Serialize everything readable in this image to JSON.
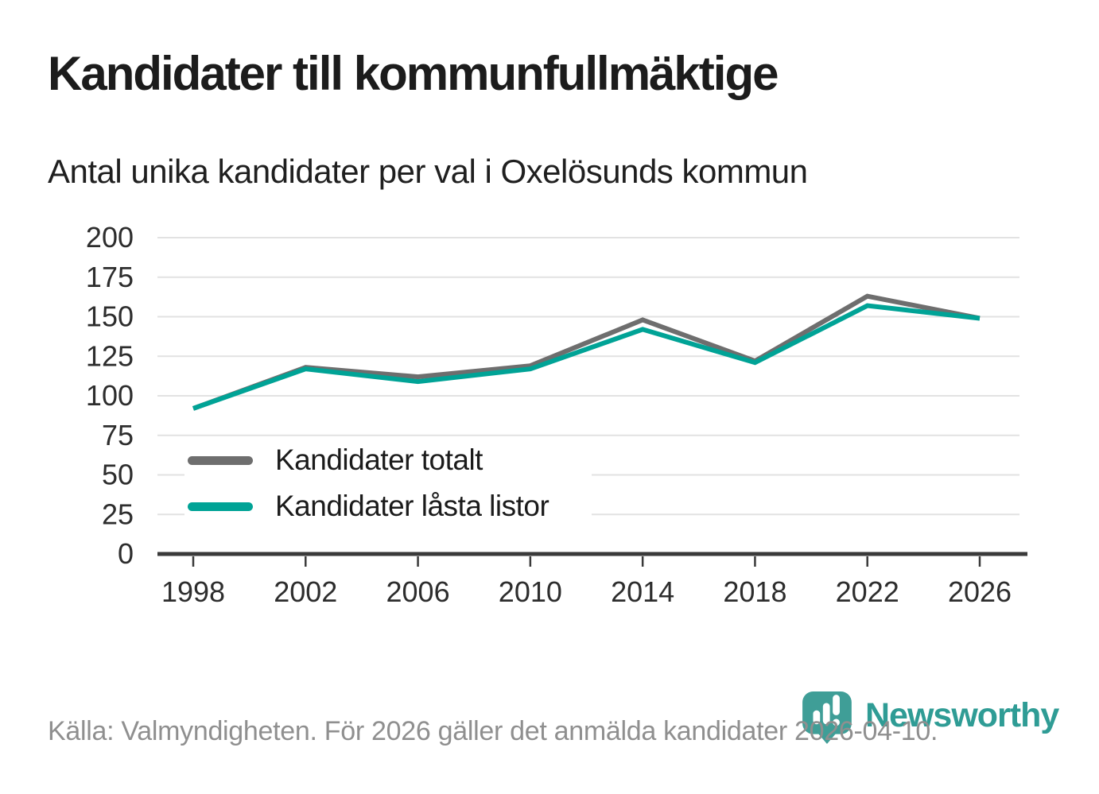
{
  "title": "Kandidater till kommunfullmäktige",
  "subtitle": "Antal unika kandidater per val i Oxelösunds kommun",
  "footer": {
    "source_note": "Källa: Valmyndigheten. För 2026 gäller det anmälda kandidater 2026-04-10."
  },
  "branding": {
    "logo_text": "Newsworthy",
    "logo_icon": "newsworthy-pin-bar-chart-icon",
    "logo_color": "#2f9c95",
    "logo_icon_color": "#3f9e97"
  },
  "colors": {
    "total_line": "#6e6e6e",
    "locked_line": "#00a396",
    "gridline": "#e2e2e2",
    "axis": "#3a3a3a",
    "tick_label": "#2d2d2d",
    "muted_text": "#8f8f8f"
  },
  "chart_data": {
    "type": "line",
    "title": "Kandidater till kommunfullmäktige",
    "subtitle": "Antal unika kandidater per val i Oxelösunds kommun",
    "x": [
      1998,
      2002,
      2006,
      2010,
      2014,
      2018,
      2022,
      2026
    ],
    "series": [
      {
        "name": "Kandidater totalt",
        "color": "#6e6e6e",
        "values": [
          92,
          118,
          112,
          119,
          148,
          122,
          163,
          149
        ]
      },
      {
        "name": "Kandidater låsta listor",
        "color": "#00a396",
        "values": [
          92,
          117,
          109,
          117,
          142,
          121,
          157,
          149
        ]
      }
    ],
    "xlabel": "",
    "ylabel": "",
    "ylim": [
      0,
      200
    ],
    "ytick_step": 25,
    "yticks": [
      0,
      25,
      50,
      75,
      100,
      125,
      150,
      175,
      200
    ],
    "grid": "horizontal",
    "legend_position": "inside-left-bottom"
  }
}
